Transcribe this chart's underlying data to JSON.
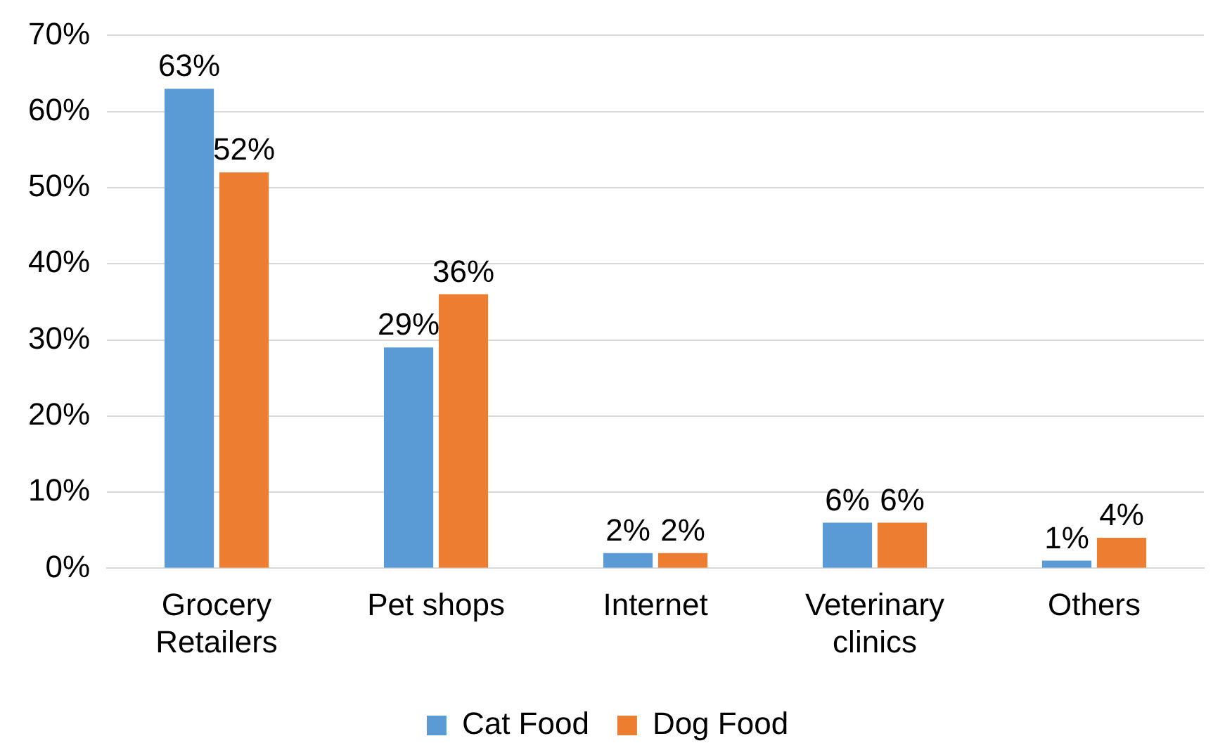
{
  "chart_data": {
    "type": "bar",
    "categories": [
      "Grocery Retailers",
      "Pet shops",
      "Internet",
      "Veterinary clinics",
      "Others"
    ],
    "series": [
      {
        "name": "Cat Food",
        "color": "#5b9bd5",
        "values": [
          63,
          29,
          2,
          6,
          1
        ],
        "value_labels": [
          "63%",
          "29%",
          "2%",
          "6%",
          "1%"
        ]
      },
      {
        "name": "Dog Food",
        "color": "#ed7d31",
        "values": [
          52,
          36,
          2,
          6,
          4
        ],
        "value_labels": [
          "52%",
          "36%",
          "2%",
          "6%",
          "4%"
        ]
      }
    ],
    "ylim": [
      0,
      70
    ],
    "yticks": [
      {
        "value": 0,
        "label": "0%"
      },
      {
        "value": 10,
        "label": "10%"
      },
      {
        "value": 20,
        "label": "20%"
      },
      {
        "value": 30,
        "label": "30%"
      },
      {
        "value": 40,
        "label": "40%"
      },
      {
        "value": 50,
        "label": "50%"
      },
      {
        "value": 60,
        "label": "60%"
      },
      {
        "value": 70,
        "label": "70%"
      }
    ],
    "grid": "y",
    "legend": "bottom"
  }
}
